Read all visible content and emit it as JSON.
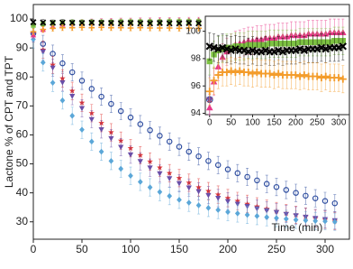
{
  "chart_data": {
    "type": "scatter",
    "x_label": "Time (min)",
    "y_label": "Lactone % of CPT and TPT",
    "xlim": [
      0,
      325
    ],
    "ylim": [
      24,
      105
    ],
    "xticks": [
      0,
      50,
      100,
      150,
      200,
      250,
      300
    ],
    "yticks": [
      30,
      40,
      50,
      60,
      70,
      80,
      90,
      100
    ],
    "x": [
      0,
      10,
      20,
      30,
      40,
      50,
      60,
      70,
      80,
      90,
      100,
      110,
      120,
      130,
      140,
      150,
      160,
      170,
      180,
      190,
      200,
      210,
      220,
      230,
      240,
      250,
      260,
      270,
      280,
      290,
      300,
      310
    ],
    "series": [
      {
        "marker": "circle-open",
        "color": "#2f4ea0",
        "error": 3,
        "values": [
          95,
          91.4,
          88.0,
          84.7,
          81.6,
          78.7,
          75.9,
          73.2,
          70.7,
          68.2,
          66.0,
          63.7,
          61.6,
          59.7,
          57.7,
          55.9,
          54.2,
          52.6,
          51.0,
          49.6,
          48.1,
          46.8,
          45.5,
          44.3,
          43.1,
          42.0,
          41.0,
          40.0,
          39.0,
          38.1,
          37.2,
          36.4
        ]
      },
      {
        "marker": "star",
        "color": "#e0302e",
        "error": 3,
        "values": [
          95,
          89.4,
          84.2,
          79.5,
          75.2,
          71.1,
          67.5,
          64.1,
          60.9,
          58.0,
          55.4,
          53.0,
          50.8,
          48.7,
          46.8,
          45.1,
          43.5,
          41.9,
          40.6,
          39.4,
          38.2,
          37.2,
          36.2,
          35.3,
          34.5,
          33.7,
          33.0,
          32.4,
          31.8,
          31.2,
          30.7,
          30.3
        ]
      },
      {
        "marker": "triangle-down",
        "color": "#6a4fa8",
        "error": 3,
        "values": [
          95,
          88.8,
          83.2,
          78.1,
          73.4,
          69.2,
          65.4,
          61.9,
          58.8,
          55.8,
          53.2,
          50.9,
          48.7,
          46.7,
          45.0,
          43.3,
          41.8,
          40.5,
          39.2,
          38.2,
          37.1,
          36.2,
          35.4,
          34.6,
          33.9,
          33.3,
          32.7,
          32.2,
          31.7,
          31.3,
          30.9,
          30.5
        ]
      },
      {
        "marker": "diamond",
        "color": "#5ba7d8",
        "error": 3,
        "values": [
          93,
          85.0,
          78.0,
          71.9,
          66.6,
          61.8,
          57.7,
          54.2,
          51.0,
          48.3,
          45.9,
          43.8,
          41.9,
          40.3,
          38.9,
          37.6,
          36.6,
          35.7,
          34.8,
          34.1,
          33.4,
          32.9,
          32.4,
          32.0,
          31.6,
          31.3,
          31.0,
          30.7,
          30.5,
          30.3,
          30.2,
          30.0
        ]
      },
      {
        "marker": "triangle-up",
        "color": "#e8398a",
        "error": 1,
        "values": [
          94.4,
          96.3,
          97.4,
          98.1,
          98.5,
          98.8,
          99.0,
          99.1,
          99.2,
          99.3,
          99.3,
          99.4,
          99.4,
          99.5,
          99.5,
          99.5,
          99.6,
          99.6,
          99.6,
          99.7,
          99.7,
          99.7,
          99.7,
          99.8,
          99.8,
          99.8,
          99.8,
          99.8,
          99.9,
          99.9,
          99.9,
          99.9
        ]
      },
      {
        "marker": "square",
        "color": "#7dc242",
        "error": 1,
        "values": [
          97.8,
          98.3,
          98.6,
          98.7,
          98.8,
          98.8,
          98.9,
          98.9,
          98.9,
          99.0,
          99.0,
          99.0,
          99.0,
          99.0,
          99.1,
          99.1,
          99.1,
          99.1,
          99.1,
          99.1,
          99.1,
          99.2,
          99.2,
          99.2,
          99.2,
          99.2,
          99.2,
          99.2,
          99.2,
          99.3,
          99.3,
          99.3
        ]
      },
      {
        "marker": "x",
        "color": "#000000",
        "error": 1,
        "values": [
          98.9,
          98.8,
          98.7,
          98.8,
          98.7,
          98.6,
          98.7,
          98.6,
          98.6,
          98.5,
          98.6,
          98.5,
          98.5,
          98.6,
          98.5,
          98.5,
          98.6,
          98.5,
          98.6,
          98.6,
          98.6,
          98.7,
          98.6,
          98.7,
          98.7,
          98.7,
          98.8,
          98.7,
          98.8,
          98.8,
          98.8,
          98.9
        ]
      },
      {
        "marker": "plus",
        "color": "#f39c2b",
        "error": 1,
        "values": [
          95.6,
          96.4,
          96.8,
          97.0,
          97.0,
          97.1,
          97.0,
          97.1,
          97.0,
          97.0,
          96.9,
          97.0,
          96.9,
          96.9,
          96.9,
          96.8,
          96.9,
          96.8,
          96.8,
          96.8,
          96.8,
          96.7,
          96.8,
          96.7,
          96.7,
          96.7,
          96.6,
          96.7,
          96.6,
          96.6,
          96.6,
          96.5
        ]
      }
    ],
    "inset": {
      "xlim": [
        -10,
        325
      ],
      "ylim": [
        93.9,
        101.1
      ],
      "xticks": [
        0,
        50,
        100,
        150,
        200,
        250,
        300
      ],
      "yticks": [
        94,
        96,
        98,
        100
      ]
    }
  }
}
